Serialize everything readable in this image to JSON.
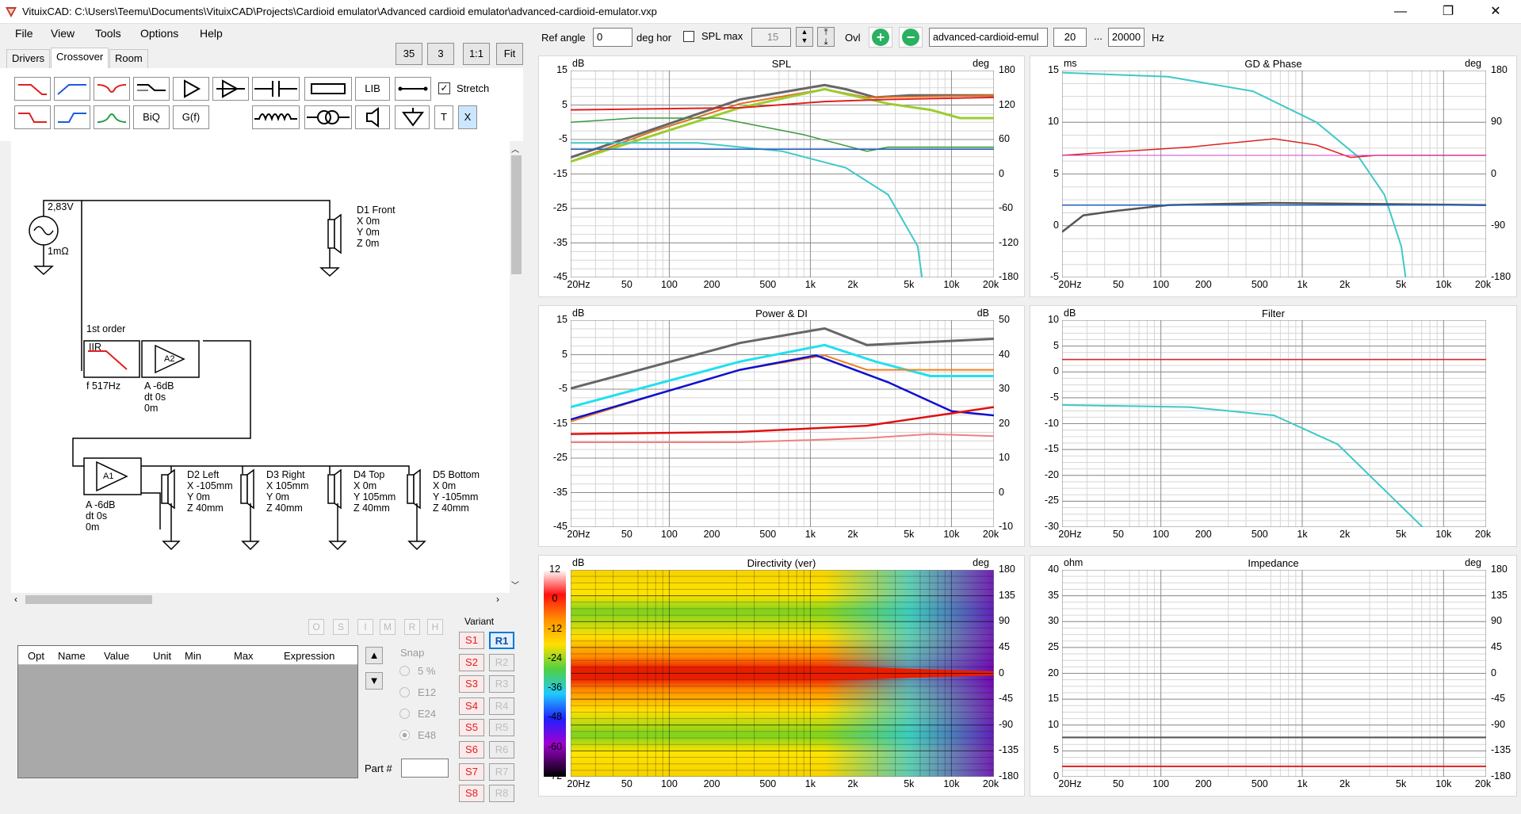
{
  "window": {
    "title": "VituixCAD: C:\\Users\\Teemu\\Documents\\VituixCAD\\Projects\\Cardioid emulator\\Advanced cardioid emulator\\advanced-cardioid-emulator.vxp",
    "minimize": "—",
    "restore": "❐",
    "close": "✕"
  },
  "menu": [
    "File",
    "View",
    "Tools",
    "Options",
    "Help"
  ],
  "tabs": [
    "Drivers",
    "Crossover",
    "Room"
  ],
  "zoom_buttons": [
    "35",
    "3",
    "1:1",
    "Fit"
  ],
  "toolbar": {
    "lib": "LIB",
    "biq": "BiQ",
    "gf": "G(f)",
    "t": "T",
    "x": "X",
    "stretch_label": "Stretch"
  },
  "schematic": {
    "source_voltage": "2,83V",
    "source_imp": "1mΩ",
    "d1": [
      "D1 Front",
      "X 0m",
      "Y 0m",
      "Z 0m"
    ],
    "order": "1st order",
    "iir": "IIR",
    "iir_f": "f   517Hz",
    "a2_label": "A2",
    "a2": [
      "A  -6dB",
      "dt 0s",
      "   0m"
    ],
    "a1_label": "A1",
    "a1": [
      "A  -6dB",
      "dt 0s",
      "   0m"
    ],
    "d2": [
      "D2 Left",
      "X -105mm",
      "Y 0m",
      "Z 40mm"
    ],
    "d3": [
      "D3 Right",
      "X 105mm",
      "Y 0m",
      "Z 40mm"
    ],
    "d4": [
      "D4 Top",
      "X 0m",
      "Y 105mm",
      "Z 40mm"
    ],
    "d5": [
      "D5 Bottom",
      "X 0m",
      "Y -105mm",
      "Z 40mm"
    ]
  },
  "optim_buttons": [
    "O",
    "S",
    "I",
    "M",
    "R",
    "H"
  ],
  "param_table": {
    "headers": [
      "Opt",
      "Name",
      "Value",
      "Unit",
      "Min",
      "Max",
      "Expression"
    ]
  },
  "snap": {
    "label": "Snap",
    "options": [
      "5 %",
      "E12",
      "E24",
      "E48"
    ],
    "selected": "E48"
  },
  "part_label": "Part #",
  "variant": {
    "label": "Variant",
    "s": [
      "S1",
      "S2",
      "S3",
      "S4",
      "S5",
      "S6",
      "S7",
      "S8"
    ],
    "r": [
      "R1",
      "R2",
      "R3",
      "R4",
      "R5",
      "R6",
      "R7",
      "R8"
    ],
    "active": "R1"
  },
  "controls": {
    "ref_angle_label": "Ref angle",
    "ref_angle": "0",
    "deg_hor": "deg hor",
    "spl_max_label": "SPL max",
    "spl_max": "15",
    "ovl": "Ovl",
    "overlay_name": "advanced-cardioid-emul",
    "f_min": "20",
    "dots": "...",
    "f_max": "20000",
    "hz": "Hz"
  },
  "freq_ticks": [
    "20Hz",
    "50",
    "100",
    "200",
    "500",
    "1k",
    "2k",
    "5k",
    "10k",
    "20k"
  ],
  "panels": {
    "spl": {
      "title": "SPL",
      "unit_l": "dB",
      "unit_r": "deg",
      "yl": [
        "15",
        "5",
        "-5",
        "-15",
        "-25",
        "-35",
        "-45"
      ],
      "yr": [
        "180",
        "120",
        "60",
        "0",
        "-60",
        "-120",
        "-180"
      ]
    },
    "gd": {
      "title": "GD & Phase",
      "unit_l": "ms",
      "unit_r": "deg",
      "yl": [
        "15",
        "10",
        "5",
        "0",
        "-5"
      ],
      "yr": [
        "180",
        "90",
        "0",
        "-90",
        "-180"
      ]
    },
    "power": {
      "title": "Power & DI",
      "unit_l": "dB",
      "unit_r": "dB",
      "yl": [
        "15",
        "5",
        "-5",
        "-15",
        "-25",
        "-35",
        "-45"
      ],
      "yr": [
        "50",
        "40",
        "30",
        "20",
        "10",
        "0",
        "-10"
      ]
    },
    "filter": {
      "title": "Filter",
      "unit_l": "dB",
      "yl": [
        "10",
        "5",
        "0",
        "-5",
        "-10",
        "-15",
        "-20",
        "-25",
        "-30"
      ]
    },
    "dir": {
      "title": "Directivity (ver)",
      "unit_l": "dB",
      "unit_r": "deg",
      "scale": [
        "12",
        "0",
        "-12",
        "-24",
        "-36",
        "-48",
        "-60",
        "-72"
      ],
      "yr": [
        "180",
        "135",
        "90",
        "45",
        "0",
        "-45",
        "-90",
        "-135",
        "-180"
      ]
    },
    "imp": {
      "title": "Impedance",
      "unit_l": "ohm",
      "unit_r": "deg",
      "yl": [
        "40",
        "35",
        "30",
        "25",
        "20",
        "15",
        "10",
        "5",
        "0"
      ],
      "yr": [
        "180",
        "135",
        "90",
        "45",
        "0",
        "-45",
        "-90",
        "-135",
        "-180"
      ]
    }
  },
  "colors": {
    "accent": "#0078d7",
    "red_variant": "#e02020"
  }
}
